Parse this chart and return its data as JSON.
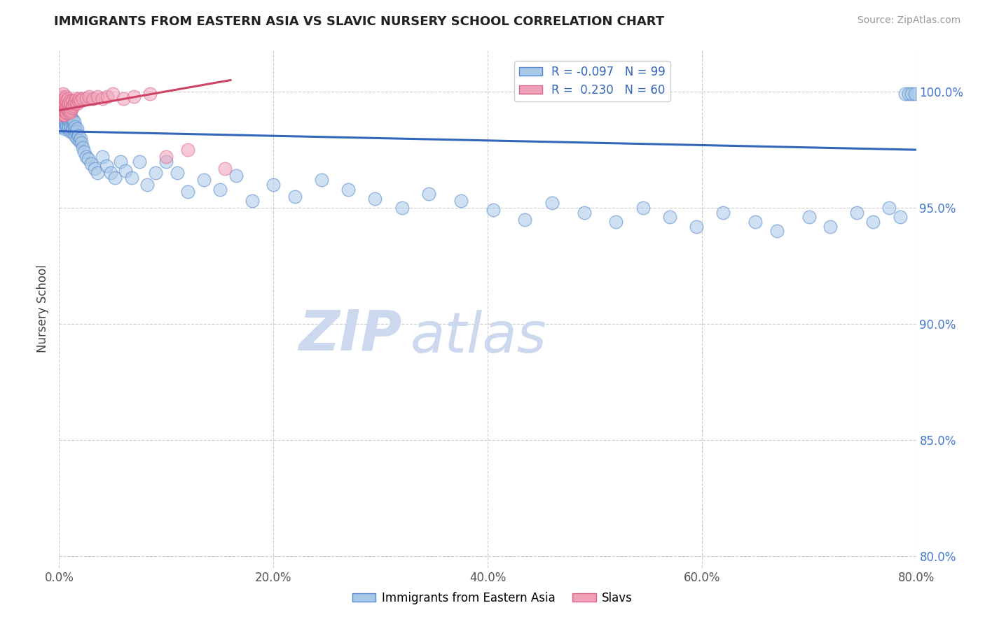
{
  "title": "IMMIGRANTS FROM EASTERN ASIA VS SLAVIC NURSERY SCHOOL CORRELATION CHART",
  "source": "Source: ZipAtlas.com",
  "ylabel": "Nursery School",
  "xlim": [
    0.0,
    0.8
  ],
  "ylim": [
    0.795,
    1.018
  ],
  "yticks": [
    0.8,
    0.85,
    0.9,
    0.95,
    1.0
  ],
  "ytick_labels": [
    "80.0%",
    "85.0%",
    "90.0%",
    "95.0%",
    "100.0%"
  ],
  "xticks": [
    0.0,
    0.2,
    0.4,
    0.6,
    0.8
  ],
  "xtick_labels": [
    "0.0%",
    "20.0%",
    "40.0%",
    "60.0%",
    "80.0%"
  ],
  "blue_R": -0.097,
  "blue_N": 99,
  "pink_R": 0.23,
  "pink_N": 60,
  "blue_color": "#a8c8e8",
  "pink_color": "#f0a0b8",
  "blue_edge_color": "#5588cc",
  "pink_edge_color": "#dd6688",
  "blue_line_color": "#3366bb",
  "pink_line_color": "#cc4466",
  "watermark_color": "#ccd8ee",
  "blue_scatter_x": [
    0.001,
    0.002,
    0.002,
    0.003,
    0.003,
    0.003,
    0.004,
    0.004,
    0.004,
    0.004,
    0.005,
    0.005,
    0.005,
    0.005,
    0.006,
    0.006,
    0.006,
    0.007,
    0.007,
    0.007,
    0.007,
    0.008,
    0.008,
    0.008,
    0.009,
    0.009,
    0.01,
    0.01,
    0.01,
    0.011,
    0.011,
    0.012,
    0.012,
    0.013,
    0.013,
    0.014,
    0.014,
    0.015,
    0.015,
    0.016,
    0.017,
    0.017,
    0.018,
    0.019,
    0.02,
    0.021,
    0.022,
    0.023,
    0.025,
    0.027,
    0.03,
    0.033,
    0.036,
    0.04,
    0.044,
    0.048,
    0.052,
    0.057,
    0.062,
    0.068,
    0.075,
    0.082,
    0.09,
    0.1,
    0.11,
    0.12,
    0.135,
    0.15,
    0.165,
    0.18,
    0.2,
    0.22,
    0.245,
    0.27,
    0.295,
    0.32,
    0.345,
    0.375,
    0.405,
    0.435,
    0.46,
    0.49,
    0.52,
    0.545,
    0.57,
    0.595,
    0.62,
    0.65,
    0.67,
    0.7,
    0.72,
    0.745,
    0.76,
    0.775,
    0.785,
    0.79,
    0.793,
    0.796,
    0.799
  ],
  "blue_scatter_y": [
    0.985,
    0.99,
    0.988,
    0.987,
    0.991,
    0.993,
    0.985,
    0.989,
    0.992,
    0.996,
    0.984,
    0.988,
    0.991,
    0.994,
    0.986,
    0.99,
    0.993,
    0.985,
    0.989,
    0.992,
    0.996,
    0.984,
    0.988,
    0.992,
    0.985,
    0.99,
    0.983,
    0.987,
    0.991,
    0.985,
    0.989,
    0.983,
    0.987,
    0.984,
    0.988,
    0.983,
    0.987,
    0.981,
    0.985,
    0.983,
    0.98,
    0.984,
    0.981,
    0.979,
    0.98,
    0.978,
    0.976,
    0.974,
    0.972,
    0.971,
    0.969,
    0.967,
    0.965,
    0.972,
    0.968,
    0.965,
    0.963,
    0.97,
    0.966,
    0.963,
    0.97,
    0.96,
    0.965,
    0.97,
    0.965,
    0.957,
    0.962,
    0.958,
    0.964,
    0.953,
    0.96,
    0.955,
    0.962,
    0.958,
    0.954,
    0.95,
    0.956,
    0.953,
    0.949,
    0.945,
    0.952,
    0.948,
    0.944,
    0.95,
    0.946,
    0.942,
    0.948,
    0.944,
    0.94,
    0.946,
    0.942,
    0.948,
    0.944,
    0.95,
    0.946,
    0.999,
    0.999,
    0.999,
    0.999
  ],
  "pink_scatter_x": [
    0.001,
    0.001,
    0.002,
    0.002,
    0.002,
    0.003,
    0.003,
    0.003,
    0.003,
    0.003,
    0.004,
    0.004,
    0.004,
    0.004,
    0.004,
    0.005,
    0.005,
    0.005,
    0.005,
    0.006,
    0.006,
    0.006,
    0.006,
    0.007,
    0.007,
    0.007,
    0.008,
    0.008,
    0.008,
    0.009,
    0.009,
    0.01,
    0.01,
    0.01,
    0.011,
    0.011,
    0.012,
    0.012,
    0.013,
    0.014,
    0.015,
    0.016,
    0.017,
    0.018,
    0.019,
    0.02,
    0.022,
    0.025,
    0.028,
    0.032,
    0.036,
    0.04,
    0.045,
    0.05,
    0.06,
    0.07,
    0.085,
    0.1,
    0.12,
    0.155
  ],
  "pink_scatter_y": [
    0.992,
    0.995,
    0.991,
    0.993,
    0.996,
    0.99,
    0.992,
    0.994,
    0.996,
    0.998,
    0.99,
    0.992,
    0.994,
    0.996,
    0.999,
    0.99,
    0.992,
    0.995,
    0.997,
    0.991,
    0.993,
    0.995,
    0.998,
    0.991,
    0.993,
    0.996,
    0.992,
    0.994,
    0.997,
    0.992,
    0.995,
    0.991,
    0.993,
    0.996,
    0.992,
    0.995,
    0.993,
    0.996,
    0.994,
    0.995,
    0.996,
    0.997,
    0.995,
    0.996,
    0.997,
    0.996,
    0.997,
    0.997,
    0.998,
    0.997,
    0.998,
    0.997,
    0.998,
    0.999,
    0.997,
    0.998,
    0.999,
    0.972,
    0.975,
    0.967
  ],
  "blue_trend_x": [
    0.0,
    0.8
  ],
  "blue_trend_y": [
    0.983,
    0.975
  ],
  "pink_trend_x": [
    0.0,
    0.16
  ],
  "pink_trend_y": [
    0.992,
    1.005
  ]
}
